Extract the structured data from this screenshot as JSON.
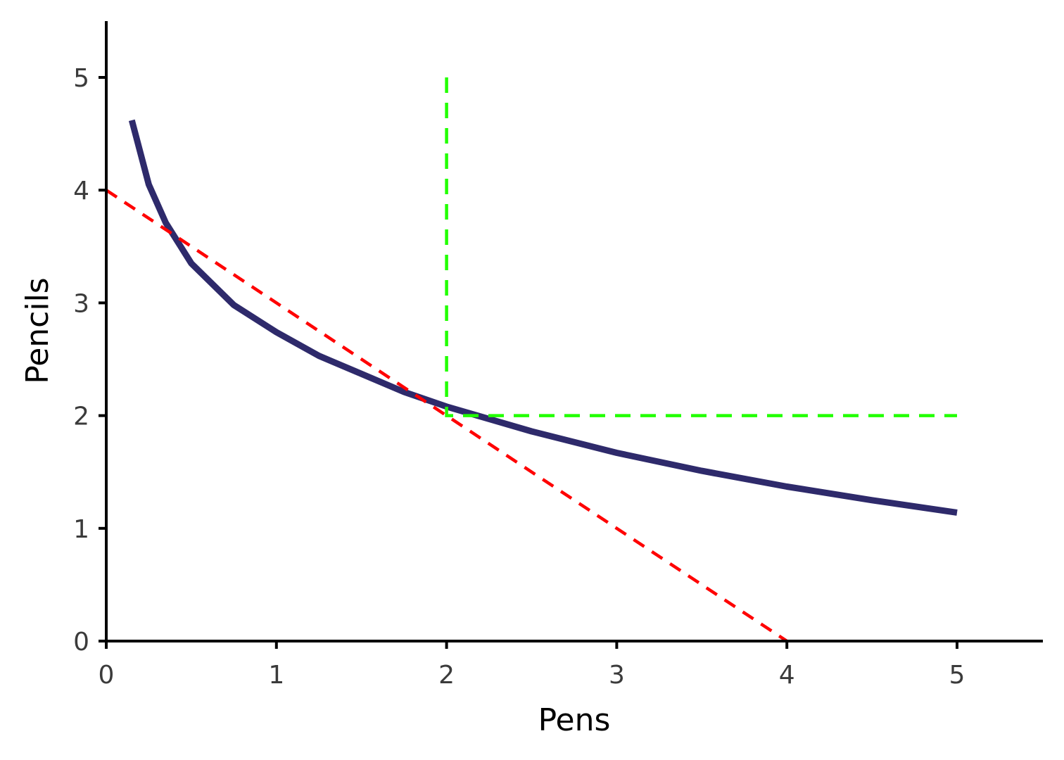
{
  "chart_data": {
    "type": "line",
    "title": "",
    "xlabel": "Pens",
    "ylabel": "Pencils",
    "xlim": [
      0,
      5.5
    ],
    "ylim": [
      0,
      5.5
    ],
    "x_ticks": [
      "0",
      "1",
      "2",
      "3",
      "4",
      "5"
    ],
    "y_ticks": [
      "0",
      "1",
      "2",
      "3",
      "4",
      "5"
    ],
    "grid": false,
    "legend": "none",
    "series": [
      {
        "style": "solid",
        "color": "#2e2a6b",
        "x": [
          0.15,
          0.25,
          0.35,
          0.5,
          0.75,
          1.0,
          1.25,
          1.5,
          1.75,
          2.0,
          2.5,
          3.0,
          3.5,
          4.0,
          4.5,
          5.0
        ],
        "y": [
          4.62,
          4.05,
          3.71,
          3.35,
          2.98,
          2.74,
          2.53,
          2.37,
          2.21,
          2.08,
          1.86,
          1.67,
          1.51,
          1.37,
          1.25,
          1.14
        ]
      },
      {
        "style": "dashed",
        "color": "#ff0000",
        "x": [
          0,
          4
        ],
        "y": [
          4,
          0
        ]
      },
      {
        "style": "dashed",
        "color": "#22ff00",
        "x": [
          2,
          2,
          5
        ],
        "y": [
          5,
          2,
          2
        ]
      }
    ]
  }
}
